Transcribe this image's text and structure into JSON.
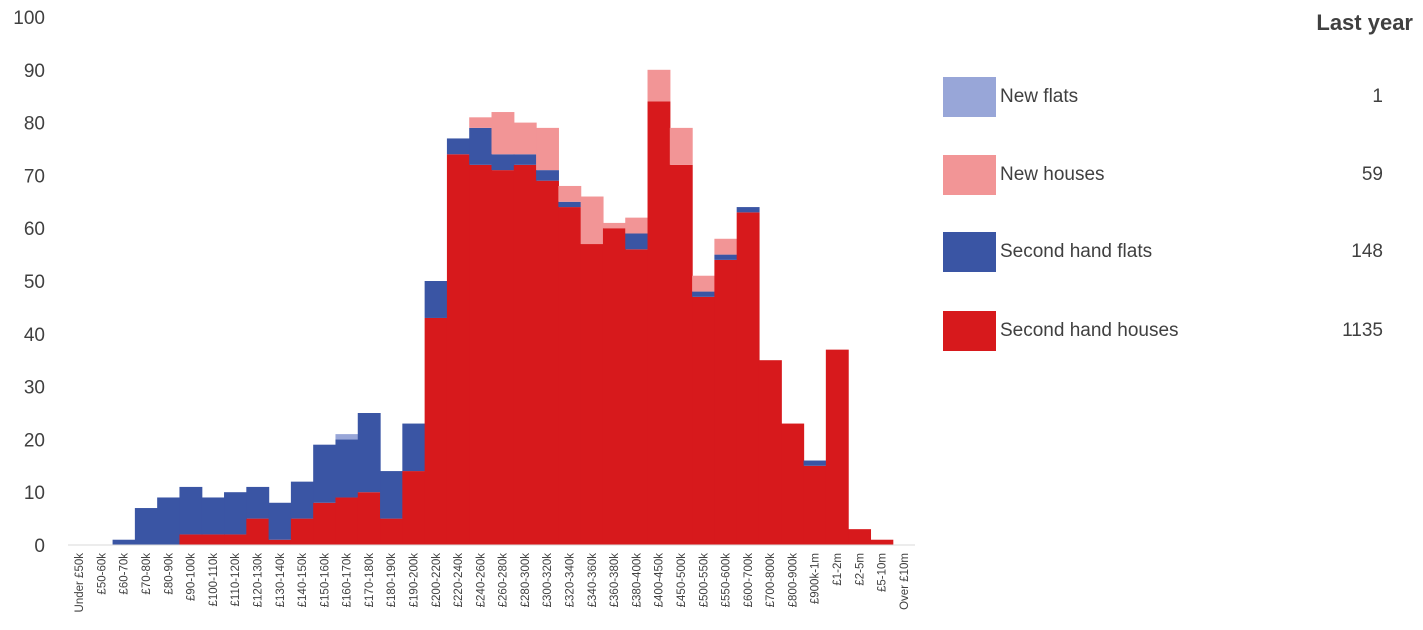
{
  "chart_data": {
    "type": "bar",
    "stacked": true,
    "xlabel": "",
    "ylabel": "",
    "ylim": [
      0,
      100
    ],
    "yticks": [
      0,
      10,
      20,
      30,
      40,
      50,
      60,
      70,
      80,
      90,
      100
    ],
    "grid": false,
    "categories": [
      "Under £50k",
      "£50-60k",
      "£60-70k",
      "£70-80k",
      "£80-90k",
      "£90-100k",
      "£100-110k",
      "£110-120k",
      "£120-130k",
      "£130-140k",
      "£140-150k",
      "£150-160k",
      "£160-170k",
      "£170-180k",
      "£180-190k",
      "£190-200k",
      "£200-220k",
      "£220-240k",
      "£240-260k",
      "£260-280k",
      "£280-300k",
      "£300-320k",
      "£320-340k",
      "£340-360k",
      "£360-380k",
      "£380-400k",
      "£400-450k",
      "£450-500k",
      "£500-550k",
      "£550-600k",
      "£600-700k",
      "£700-800k",
      "£800-900k",
      "£900k-1m",
      "£1-2m",
      "£2-5m",
      "£5-10m",
      "Over £10m"
    ],
    "series": [
      {
        "name": "Second hand houses",
        "color": "#d7191c",
        "values": [
          0,
          0,
          0,
          0,
          0,
          2,
          2,
          2,
          5,
          1,
          5,
          8,
          9,
          10,
          5,
          14,
          43,
          74,
          72,
          71,
          72,
          69,
          64,
          57,
          60,
          56,
          84,
          72,
          47,
          54,
          63,
          35,
          23,
          15,
          37,
          3,
          1,
          0
        ]
      },
      {
        "name": "Second hand flats",
        "color": "#3a55a4",
        "values": [
          0,
          0,
          1,
          7,
          9,
          9,
          7,
          8,
          6,
          7,
          7,
          11,
          11,
          15,
          9,
          9,
          7,
          3,
          7,
          3,
          2,
          2,
          1,
          0,
          0,
          3,
          0,
          0,
          1,
          1,
          1,
          0,
          0,
          1,
          0,
          0,
          0,
          0
        ]
      },
      {
        "name": "New houses",
        "color": "#f29596",
        "values": [
          0,
          0,
          0,
          0,
          0,
          0,
          0,
          0,
          0,
          0,
          0,
          0,
          0,
          0,
          0,
          0,
          0,
          0,
          2,
          8,
          6,
          8,
          3,
          9,
          1,
          3,
          6,
          7,
          3,
          3,
          0,
          0,
          0,
          0,
          0,
          0,
          0,
          0
        ]
      },
      {
        "name": "New flats",
        "color": "#98a6d8",
        "values": [
          0,
          0,
          0,
          0,
          0,
          0,
          0,
          0,
          0,
          0,
          0,
          0,
          1,
          0,
          0,
          0,
          0,
          0,
          0,
          0,
          0,
          0,
          0,
          0,
          0,
          0,
          0,
          0,
          0,
          0,
          0,
          0,
          0,
          0,
          0,
          0,
          0,
          0
        ]
      }
    ],
    "legend": {
      "title": "Last year",
      "placement": "right",
      "items": [
        {
          "label": "New flats",
          "count": "1",
          "color": "#98a6d8"
        },
        {
          "label": "New houses",
          "count": "59",
          "color": "#f29596"
        },
        {
          "label": "Second hand flats",
          "count": "148",
          "color": "#3a55a4"
        },
        {
          "label": "Second hand houses",
          "count": "1135",
          "color": "#d7191c"
        }
      ]
    }
  }
}
